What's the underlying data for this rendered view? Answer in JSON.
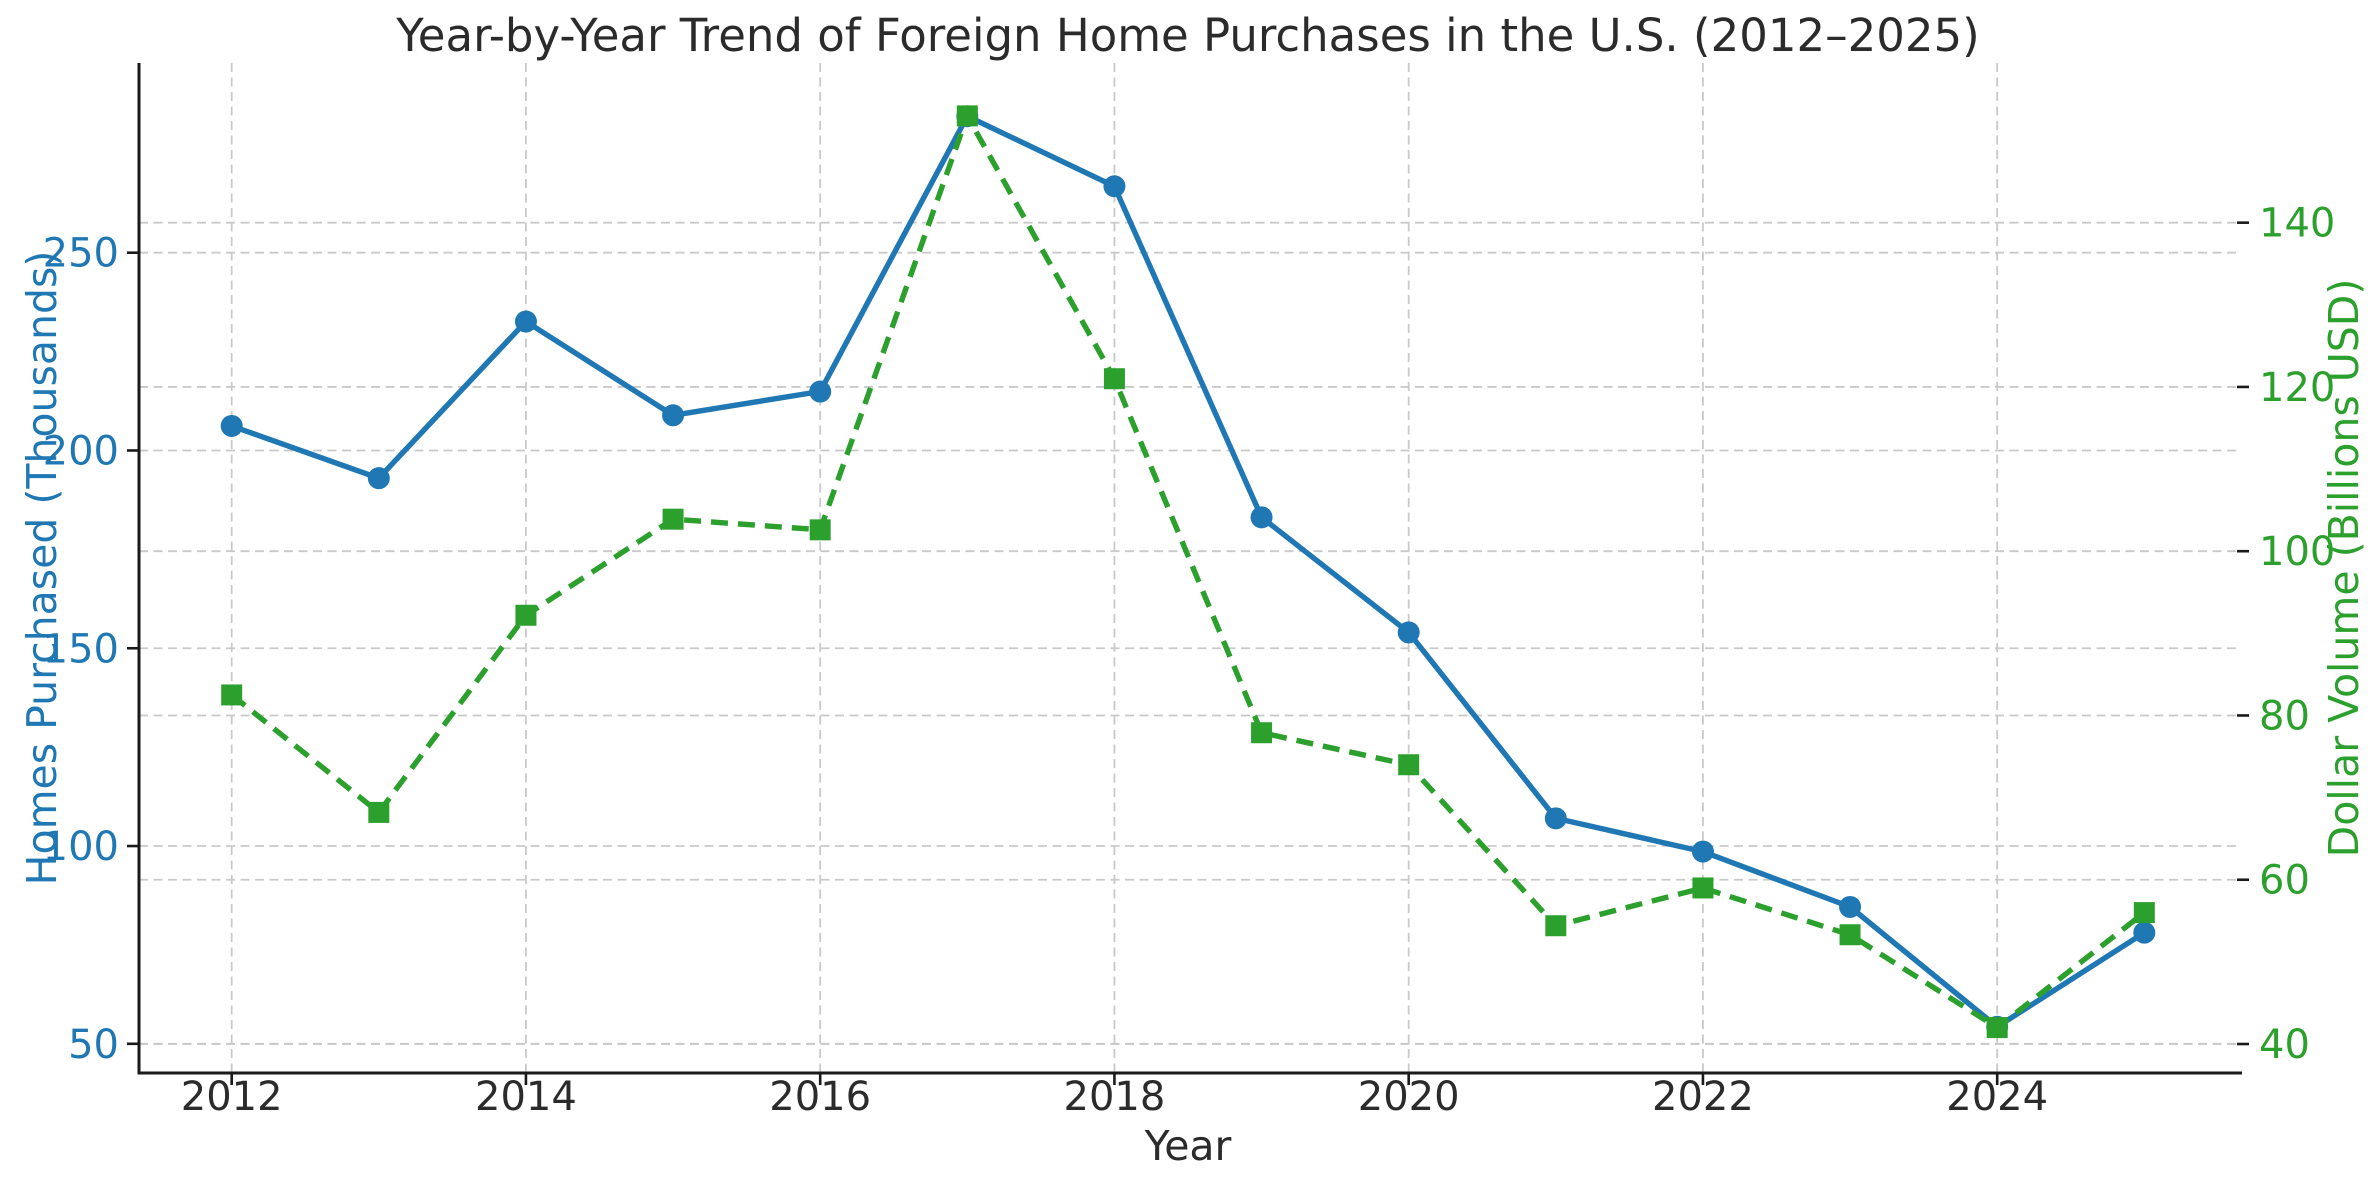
{
  "figure": {
    "title": "Year-by-Year Trend of Foreign Home Purchases in the U.S. (2012–2025)",
    "xlabel": "Year",
    "ylabel_left": "Homes Purchased (Thousands)",
    "ylabel_right": "Dollar Volume (Billions USD)"
  },
  "colors": {
    "homes_series": "#1f77b4",
    "volume_series": "#2ca02c",
    "grid": "#c9c9c9",
    "spine": "#1a1a1a",
    "tick_text": "#2b2b2b"
  },
  "chart_data": {
    "type": "line",
    "title": "Year-by-Year Trend of Foreign Home Purchases in the U.S. (2012–2025)",
    "xlabel": "Year",
    "grid": true,
    "legend": "none",
    "x": [
      2012,
      2013,
      2014,
      2015,
      2016,
      2017,
      2018,
      2019,
      2020,
      2021,
      2022,
      2023,
      2024,
      2025
    ],
    "x_ticks": [
      2012,
      2014,
      2016,
      2018,
      2020,
      2022,
      2024
    ],
    "x_range": [
      2011.37,
      2025.63
    ],
    "series": [
      {
        "name": "Homes Purchased",
        "axis": "left",
        "ylabel": "Homes Purchased (Thousands)",
        "color": "#1f77b4",
        "line_style": "solid",
        "marker": "circle",
        "values": [
          206.2,
          193.0,
          232.6,
          208.9,
          214.9,
          284.5,
          266.8,
          183.1,
          154.0,
          107.0,
          98.6,
          84.6,
          54.3,
          78.1
        ]
      },
      {
        "name": "Dollar Volume",
        "axis": "right",
        "ylabel": "Dollar Volume (Billions USD)",
        "color": "#2ca02c",
        "line_style": "dashed",
        "marker": "square",
        "values": [
          82.5,
          68.2,
          92.2,
          103.9,
          102.6,
          153.0,
          121.0,
          77.9,
          74.0,
          54.4,
          59.0,
          53.3,
          42.0,
          56.0
        ]
      }
    ],
    "left_axis": {
      "ticks": [
        50,
        100,
        150,
        200,
        250
      ],
      "range": [
        42.62,
        297.96
      ]
    },
    "right_axis": {
      "ticks": [
        40,
        60,
        80,
        100,
        120,
        140
      ],
      "range": [
        36.47,
        159.44
      ]
    }
  }
}
